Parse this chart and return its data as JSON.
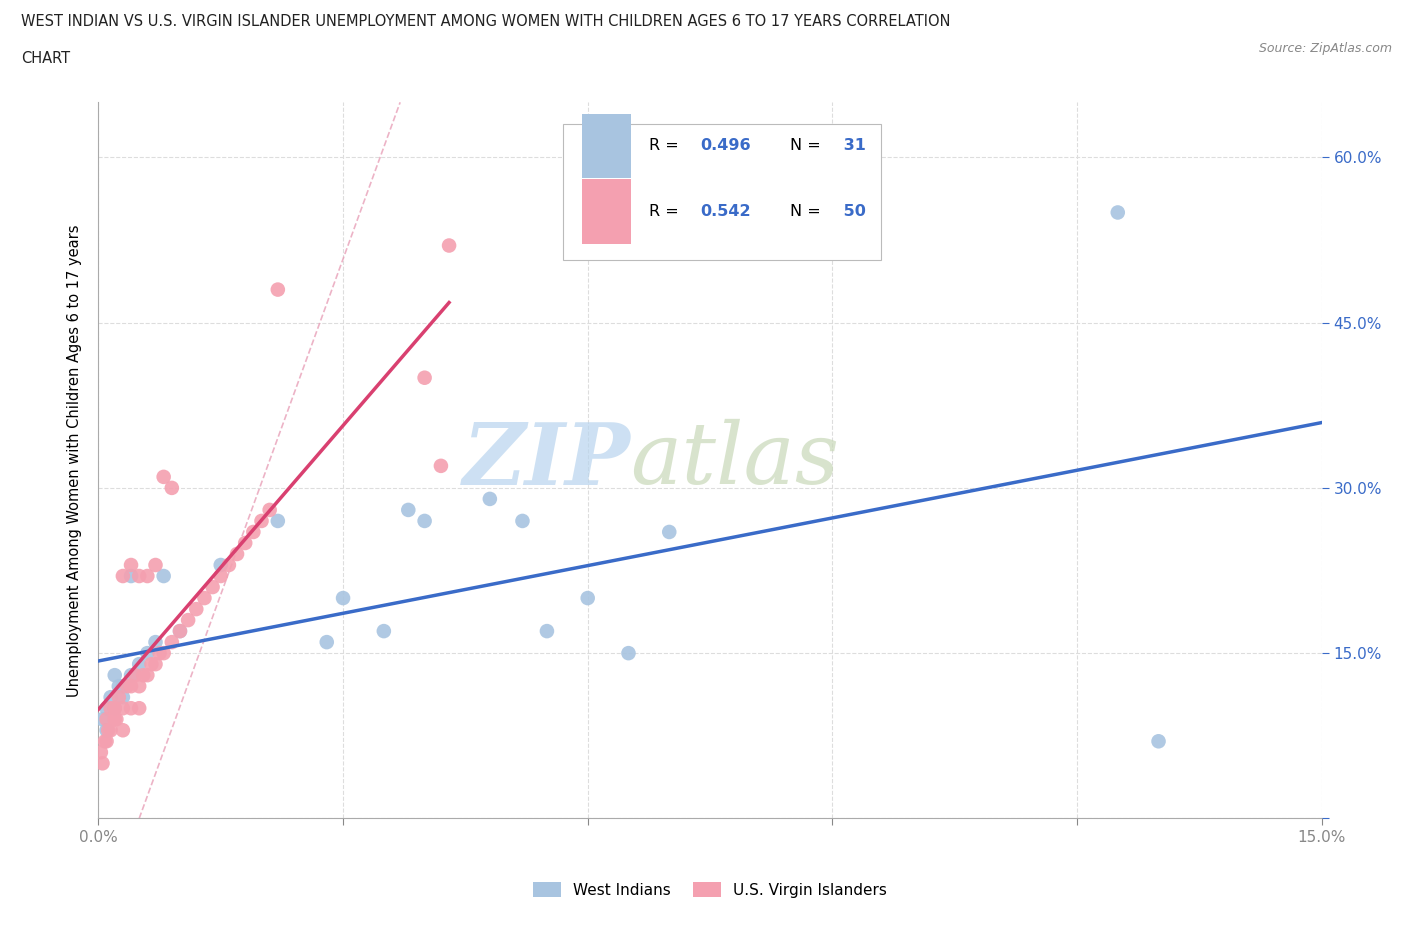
{
  "title_line1": "WEST INDIAN VS U.S. VIRGIN ISLANDER UNEMPLOYMENT AMONG WOMEN WITH CHILDREN AGES 6 TO 17 YEARS CORRELATION",
  "title_line2": "CHART",
  "source": "Source: ZipAtlas.com",
  "ylabel": "Unemployment Among Women with Children Ages 6 to 17 years",
  "xlim": [
    0.0,
    0.15
  ],
  "ylim": [
    0.0,
    0.65
  ],
  "xticks": [
    0.0,
    0.03,
    0.06,
    0.09,
    0.12,
    0.15
  ],
  "xtick_labels": [
    "0.0%",
    "",
    "",
    "",
    "",
    "15.0%"
  ],
  "yticks_right": [
    0.0,
    0.15,
    0.3,
    0.45,
    0.6
  ],
  "ytick_labels_right": [
    "",
    "15.0%",
    "30.0%",
    "45.0%",
    "60.0%"
  ],
  "blue_color": "#A8C4E0",
  "pink_color": "#F4A0B0",
  "blue_line_color": "#3A6BC8",
  "pink_line_color": "#D94070",
  "pink_dash_color": "#E8A0B8",
  "R_blue": 0.496,
  "N_blue": 31,
  "R_pink": 0.542,
  "N_pink": 50,
  "legend1": "West Indians",
  "legend2": "U.S. Virgin Islanders",
  "watermark_zip": "ZIP",
  "watermark_atlas": "atlas",
  "blue_scatter_x": [
    0.0005,
    0.001,
    0.001,
    0.0015,
    0.002,
    0.002,
    0.0025,
    0.003,
    0.003,
    0.004,
    0.004,
    0.005,
    0.006,
    0.007,
    0.008,
    0.01,
    0.015,
    0.022,
    0.028,
    0.03,
    0.035,
    0.038,
    0.04,
    0.048,
    0.052,
    0.055,
    0.06,
    0.065,
    0.07,
    0.125,
    0.13
  ],
  "blue_scatter_y": [
    0.09,
    0.1,
    0.08,
    0.11,
    0.1,
    0.13,
    0.12,
    0.12,
    0.11,
    0.13,
    0.22,
    0.14,
    0.15,
    0.16,
    0.22,
    0.17,
    0.23,
    0.27,
    0.16,
    0.2,
    0.17,
    0.28,
    0.27,
    0.29,
    0.27,
    0.17,
    0.2,
    0.15,
    0.26,
    0.55,
    0.07
  ],
  "pink_scatter_x": [
    0.0003,
    0.0005,
    0.0008,
    0.001,
    0.001,
    0.0012,
    0.0015,
    0.0015,
    0.002,
    0.002,
    0.0022,
    0.0025,
    0.003,
    0.003,
    0.003,
    0.0035,
    0.004,
    0.004,
    0.004,
    0.0045,
    0.005,
    0.005,
    0.005,
    0.0055,
    0.006,
    0.006,
    0.0065,
    0.007,
    0.007,
    0.0075,
    0.008,
    0.008,
    0.009,
    0.009,
    0.01,
    0.011,
    0.012,
    0.013,
    0.014,
    0.015,
    0.016,
    0.017,
    0.018,
    0.019,
    0.02,
    0.021,
    0.022,
    0.04,
    0.042,
    0.043
  ],
  "pink_scatter_y": [
    0.06,
    0.05,
    0.07,
    0.07,
    0.09,
    0.08,
    0.08,
    0.1,
    0.09,
    0.1,
    0.09,
    0.11,
    0.08,
    0.1,
    0.22,
    0.12,
    0.1,
    0.12,
    0.23,
    0.13,
    0.1,
    0.12,
    0.22,
    0.13,
    0.13,
    0.22,
    0.14,
    0.14,
    0.23,
    0.15,
    0.15,
    0.31,
    0.16,
    0.3,
    0.17,
    0.18,
    0.19,
    0.2,
    0.21,
    0.22,
    0.23,
    0.24,
    0.25,
    0.26,
    0.27,
    0.28,
    0.48,
    0.4,
    0.32,
    0.52
  ],
  "background_color": "#FFFFFF",
  "grid_color": "#DDDDDD",
  "label_color": "#3A6BC8",
  "title_color": "#222222"
}
